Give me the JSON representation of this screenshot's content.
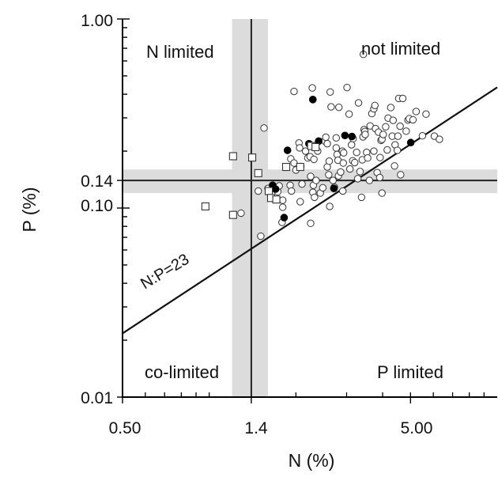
{
  "chart_data": {
    "type": "scatter",
    "xlabel": "N (%)",
    "ylabel": "P (%)",
    "xscale": "log",
    "yscale": "log",
    "xlim": [
      0.5,
      10
    ],
    "ylim": [
      0.01,
      1.0
    ],
    "x_tick_labels": [
      {
        "value": 0.5,
        "label": "0.50"
      },
      {
        "value": 1.4,
        "label": "1.4"
      },
      {
        "value": 5.0,
        "label": "5.00"
      }
    ],
    "y_tick_labels": [
      {
        "value": 0.01,
        "label": "0.01"
      },
      {
        "value": 0.1,
        "label": "0.10"
      },
      {
        "value": 0.14,
        "label": "0.14"
      },
      {
        "value": 1.0,
        "label": "1.00"
      }
    ],
    "quadrant_labels": {
      "top_left": "N limited",
      "top_right": "not limited",
      "bottom_left": "co-limited",
      "bottom_right": "P limited"
    },
    "ratio_line": {
      "label": "N:P=23",
      "ratio": 23
    },
    "threshold_lines": {
      "x": 1.4,
      "y": 0.14
    },
    "threshold_bands": {
      "x": [
        1.2,
        1.6
      ],
      "y": [
        0.12,
        0.16
      ]
    },
    "series": [
      {
        "marker": "open-circle",
        "points": [
          [
            1.29,
            0.094
          ],
          [
            1.51,
            0.071
          ],
          [
            1.48,
            0.123
          ],
          [
            1.55,
            0.265
          ],
          [
            1.6,
            0.127
          ],
          [
            1.72,
            0.126
          ],
          [
            1.73,
            0.122
          ],
          [
            1.75,
            0.131
          ],
          [
            1.8,
            0.11
          ],
          [
            1.8,
            0.101
          ],
          [
            1.79,
            0.084
          ],
          [
            1.91,
            0.132
          ],
          [
            1.92,
            0.182
          ],
          [
            1.93,
            0.123
          ],
          [
            1.97,
            0.173
          ],
          [
            1.97,
            0.414
          ],
          [
            2.0,
            0.159
          ],
          [
            2.05,
            0.221
          ],
          [
            2.06,
            0.208
          ],
          [
            2.07,
            0.108
          ],
          [
            2.08,
            0.166
          ],
          [
            2.1,
            0.134
          ],
          [
            2.16,
            0.2
          ],
          [
            2.2,
            0.184
          ],
          [
            2.24,
            0.187
          ],
          [
            2.25,
            0.147
          ],
          [
            2.25,
            0.083
          ],
          [
            2.28,
            0.432
          ],
          [
            2.29,
            0.121
          ],
          [
            2.3,
            0.132
          ],
          [
            2.31,
            0.181
          ],
          [
            2.32,
            0.114
          ],
          [
            2.35,
            0.14
          ],
          [
            2.38,
            0.2
          ],
          [
            2.4,
            0.226
          ],
          [
            2.43,
            0.12
          ],
          [
            2.48,
            0.128
          ],
          [
            2.52,
            0.226
          ],
          [
            2.54,
            0.237
          ],
          [
            2.57,
            0.219
          ],
          [
            2.57,
            0.165
          ],
          [
            2.6,
            0.15
          ],
          [
            2.61,
            0.177
          ],
          [
            2.62,
            0.102
          ],
          [
            2.63,
            0.411
          ],
          [
            2.65,
            0.343
          ],
          [
            2.69,
            0.14
          ],
          [
            2.72,
            0.129
          ],
          [
            2.76,
            0.208
          ],
          [
            2.76,
            0.235
          ],
          [
            2.78,
            0.192
          ],
          [
            2.8,
            0.179
          ],
          [
            2.81,
            0.148
          ],
          [
            2.82,
            0.341
          ],
          [
            2.86,
            0.155
          ],
          [
            2.9,
            0.2
          ],
          [
            2.91,
            0.123
          ],
          [
            2.92,
            0.173
          ],
          [
            2.93,
            0.196
          ],
          [
            3.01,
            0.434
          ],
          [
            3.06,
            0.314
          ],
          [
            3.08,
            0.161
          ],
          [
            3.12,
            0.216
          ],
          [
            3.15,
            0.178
          ],
          [
            3.16,
            0.233
          ],
          [
            3.2,
            0.174
          ],
          [
            3.25,
            0.197
          ],
          [
            3.28,
            0.143
          ],
          [
            3.3,
            0.36
          ],
          [
            3.34,
            0.156
          ],
          [
            3.38,
            0.114
          ],
          [
            3.4,
            0.18
          ],
          [
            3.42,
            0.238
          ],
          [
            3.43,
            0.65
          ],
          [
            3.45,
            0.26
          ],
          [
            3.47,
            0.254
          ],
          [
            3.48,
            0.245
          ],
          [
            3.52,
            0.197
          ],
          [
            3.55,
            0.184
          ],
          [
            3.6,
            0.14
          ],
          [
            3.62,
            0.272
          ],
          [
            3.67,
            0.316
          ],
          [
            3.73,
            0.2
          ],
          [
            3.73,
            0.335
          ],
          [
            3.76,
            0.349
          ],
          [
            3.78,
            0.263
          ],
          [
            3.83,
            0.154
          ],
          [
            3.87,
            0.252
          ],
          [
            3.91,
            0.145
          ],
          [
            3.92,
            0.185
          ],
          [
            3.95,
            0.228
          ],
          [
            3.98,
            0.231
          ],
          [
            3.98,
            0.12
          ],
          [
            4.02,
            0.245
          ],
          [
            4.1,
            0.269
          ],
          [
            4.15,
            0.203
          ],
          [
            4.18,
            0.299
          ],
          [
            4.27,
            0.34
          ],
          [
            4.32,
            0.24
          ],
          [
            4.35,
            0.291
          ],
          [
            4.4,
            0.167
          ],
          [
            4.42,
            0.216
          ],
          [
            4.5,
            0.202
          ],
          [
            4.52,
            0.24
          ],
          [
            4.55,
            0.38
          ],
          [
            4.6,
            0.271
          ],
          [
            4.62,
            0.15
          ],
          [
            4.7,
            0.38
          ],
          [
            4.83,
            0.255
          ],
          [
            4.9,
            0.292
          ],
          [
            4.95,
            0.297
          ],
          [
            5.1,
            0.293
          ],
          [
            5.23,
            0.324
          ],
          [
            5.5,
            0.241
          ],
          [
            5.66,
            0.314
          ],
          [
            6.05,
            0.24
          ],
          [
            6.3,
            0.231
          ]
        ]
      },
      {
        "marker": "filled-circle",
        "points": [
          [
            1.66,
            0.132
          ],
          [
            1.7,
            0.126
          ],
          [
            1.82,
            0.089
          ],
          [
            1.87,
            0.202
          ],
          [
            2.22,
            0.219
          ],
          [
            2.29,
            0.375
          ],
          [
            2.4,
            0.226
          ],
          [
            2.71,
            0.127
          ],
          [
            2.96,
            0.242
          ],
          [
            3.13,
            0.239
          ],
          [
            5.01,
            0.222
          ]
        ]
      },
      {
        "marker": "open-square",
        "points": [
          [
            0.97,
            0.102
          ],
          [
            1.21,
            0.092
          ],
          [
            1.21,
            0.188
          ],
          [
            1.41,
            0.185
          ],
          [
            1.48,
            0.153
          ],
          [
            1.61,
            0.123
          ],
          [
            1.64,
            0.113
          ],
          [
            1.71,
            0.111
          ],
          [
            1.85,
            0.165
          ],
          [
            2.07,
            0.165
          ],
          [
            2.26,
            0.213
          ],
          [
            2.34,
            0.21
          ]
        ]
      }
    ]
  }
}
